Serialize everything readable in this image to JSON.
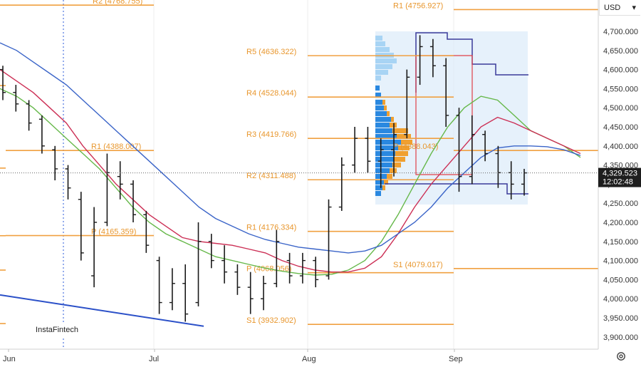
{
  "header": {
    "currency": "USD",
    "currency_caret": "▾"
  },
  "watermark": "InstaFintech",
  "price_tag": {
    "price": "4,329.523",
    "countdown": "12:02:48"
  },
  "settings_icon": "gear-icon",
  "colors": {
    "pivot": "#f0a040",
    "ma_fast": "#66b84a",
    "ma_mid": "#cc2f55",
    "ma_slow": "#3a64c8",
    "trendline": "#2b50c8",
    "profile_light": "#a8d4f4",
    "profile_blue": "#2a88e0",
    "profile_orange": "#f0a030",
    "range_box": "#d8eafa",
    "box_high": "#3a3a9a",
    "box_red": "#e04048"
  },
  "chart_data": {
    "type": "candlestick",
    "x_axis_labels": [
      "Jun",
      "Jul",
      "Aug",
      "Sep"
    ],
    "y_axis_labels": [
      "4,700.000",
      "4,650.000",
      "4,600.000",
      "4,550.000",
      "4,500.000",
      "4,450.000",
      "4,400.000",
      "4,350.000",
      "4,300.000",
      "4,250.000",
      "4,200.000",
      "4,150.000",
      "4,100.000",
      "4,050.000",
      "4,000.000",
      "3,950.000",
      "3,900.000"
    ],
    "ylim": [
      3880,
      4718
    ],
    "current_price": 4329.523,
    "pivot_levels": [
      {
        "label": "R2 (4768.755)",
        "value": 4768.755,
        "period": "Jun"
      },
      {
        "label": "R1 (4388.007)",
        "value": 4388.007,
        "period": "Jul"
      },
      {
        "label": "P (4165.359)",
        "value": 4165.359,
        "period": "Jul"
      },
      {
        "label": "R5 (4636.322)",
        "value": 4636.322,
        "period": "Aug"
      },
      {
        "label": "R4 (4528.044)",
        "value": 4528.044,
        "period": "Aug"
      },
      {
        "label": "R3 (4419.766)",
        "value": 4419.766,
        "period": "Aug"
      },
      {
        "label": "R2 (4311.488)",
        "value": 4311.488,
        "period": "Aug"
      },
      {
        "label": "R1 (4176.334)",
        "value": 4176.334,
        "period": "Aug"
      },
      {
        "label": "P (4068.056)",
        "value": 4068.056,
        "period": "Aug"
      },
      {
        "label": "S1 (3932.902)",
        "value": 3932.902,
        "period": "Aug"
      },
      {
        "label": "R1 (4756.927)",
        "value": 4756.927,
        "period": "Sep"
      },
      {
        "label": "P (4388.043)",
        "value": 4388.043,
        "period": "Sep"
      },
      {
        "label": "S1 (4079.017)",
        "value": 4079.017,
        "period": "Sep"
      }
    ],
    "moving_averages": [
      {
        "name": "fast",
        "values": [
          4550,
          4530,
          4500,
          4460,
          4420,
          4380,
          4340,
          4290,
          4240,
          4200,
          4170,
          4150,
          4130,
          4110,
          4100,
          4090,
          4080,
          4072,
          4066,
          4062,
          4064,
          4075,
          4100,
          4150,
          4220,
          4300,
          4380,
          4450,
          4500,
          4530,
          4520,
          4480,
          4440,
          4420,
          4400,
          4370
        ]
      },
      {
        "name": "mid",
        "values": [
          4600,
          4570,
          4540,
          4500,
          4460,
          4400,
          4350,
          4300,
          4260,
          4220,
          4190,
          4160,
          4150,
          4145,
          4140,
          4130,
          4120,
          4100,
          4085,
          4075,
          4070,
          4070,
          4080,
          4110,
          4170,
          4240,
          4300,
          4350,
          4400,
          4450,
          4475,
          4460,
          4440,
          4420,
          4400,
          4380
        ]
      },
      {
        "name": "slow",
        "values": [
          4670,
          4650,
          4620,
          4590,
          4560,
          4520,
          4480,
          4440,
          4400,
          4360,
          4320,
          4280,
          4240,
          4210,
          4190,
          4170,
          4155,
          4145,
          4135,
          4130,
          4125,
          4120,
          4125,
          4140,
          4170,
          4200,
          4240,
          4290,
          4330,
          4370,
          4395,
          4400,
          4400,
          4398,
          4390,
          4375
        ]
      }
    ],
    "trendline": [
      {
        "date": "May 28",
        "value": 4010
      },
      {
        "date": "Jul 15",
        "value": 3928
      }
    ],
    "candles": [
      {
        "o": 4600,
        "h": 4610,
        "l": 4520,
        "c": 4540
      },
      {
        "o": 4540,
        "h": 4560,
        "l": 4490,
        "c": 4510
      },
      {
        "o": 4510,
        "h": 4520,
        "l": 4440,
        "c": 4460
      },
      {
        "o": 4470,
        "h": 4480,
        "l": 4380,
        "c": 4400
      },
      {
        "o": 4390,
        "h": 4400,
        "l": 4310,
        "c": 4340
      },
      {
        "o": 4340,
        "h": 4350,
        "l": 4260,
        "c": 4290
      },
      {
        "o": 4260,
        "h": 4280,
        "l": 4100,
        "c": 4120
      },
      {
        "o": 4060,
        "h": 4240,
        "l": 4030,
        "c": 4200
      },
      {
        "o": 4200,
        "h": 4380,
        "l": 4190,
        "c": 4330
      },
      {
        "o": 4320,
        "h": 4360,
        "l": 4260,
        "c": 4300
      },
      {
        "o": 4300,
        "h": 4310,
        "l": 4200,
        "c": 4220
      },
      {
        "o": 4220,
        "h": 4230,
        "l": 4120,
        "c": 4140
      },
      {
        "o": 4100,
        "h": 4110,
        "l": 3960,
        "c": 3990
      },
      {
        "o": 3990,
        "h": 4080,
        "l": 3970,
        "c": 4040
      },
      {
        "o": 4040,
        "h": 4090,
        "l": 3940,
        "c": 3960
      },
      {
        "o": 3990,
        "h": 4200,
        "l": 3980,
        "c": 4150
      },
      {
        "o": 4150,
        "h": 4170,
        "l": 4080,
        "c": 4100
      },
      {
        "o": 4100,
        "h": 4140,
        "l": 4040,
        "c": 4070
      },
      {
        "o": 4070,
        "h": 4090,
        "l": 4010,
        "c": 4030
      },
      {
        "o": 4030,
        "h": 4070,
        "l": 3960,
        "c": 4000
      },
      {
        "o": 4000,
        "h": 4060,
        "l": 3970,
        "c": 4040
      },
      {
        "o": 4040,
        "h": 4180,
        "l": 4030,
        "c": 4150
      },
      {
        "o": 4100,
        "h": 4120,
        "l": 4040,
        "c": 4060
      },
      {
        "o": 4060,
        "h": 4120,
        "l": 4040,
        "c": 4100
      },
      {
        "o": 4100,
        "h": 4110,
        "l": 4030,
        "c": 4050
      },
      {
        "o": 4060,
        "h": 4260,
        "l": 4050,
        "c": 4240
      },
      {
        "o": 4240,
        "h": 4370,
        "l": 4230,
        "c": 4350
      },
      {
        "o": 4350,
        "h": 4450,
        "l": 4330,
        "c": 4420
      },
      {
        "o": 4420,
        "h": 4450,
        "l": 4330,
        "c": 4360
      },
      {
        "o": 4360,
        "h": 4420,
        "l": 4290,
        "c": 4390
      },
      {
        "o": 4390,
        "h": 4460,
        "l": 4320,
        "c": 4430
      },
      {
        "o": 4430,
        "h": 4600,
        "l": 4420,
        "c": 4580
      },
      {
        "o": 4580,
        "h": 4690,
        "l": 4560,
        "c": 4660
      },
      {
        "o": 4660,
        "h": 4680,
        "l": 4580,
        "c": 4610
      },
      {
        "o": 4610,
        "h": 4630,
        "l": 4450,
        "c": 4480
      },
      {
        "o": 4480,
        "h": 4500,
        "l": 4280,
        "c": 4320
      },
      {
        "o": 4320,
        "h": 4480,
        "l": 4300,
        "c": 4430
      },
      {
        "o": 4430,
        "h": 4440,
        "l": 4360,
        "c": 4380
      },
      {
        "o": 4380,
        "h": 4400,
        "l": 4290,
        "c": 4330
      },
      {
        "o": 4330,
        "h": 4360,
        "l": 4260,
        "c": 4300
      },
      {
        "o": 4300,
        "h": 4340,
        "l": 4270,
        "c": 4329.5
      }
    ]
  }
}
